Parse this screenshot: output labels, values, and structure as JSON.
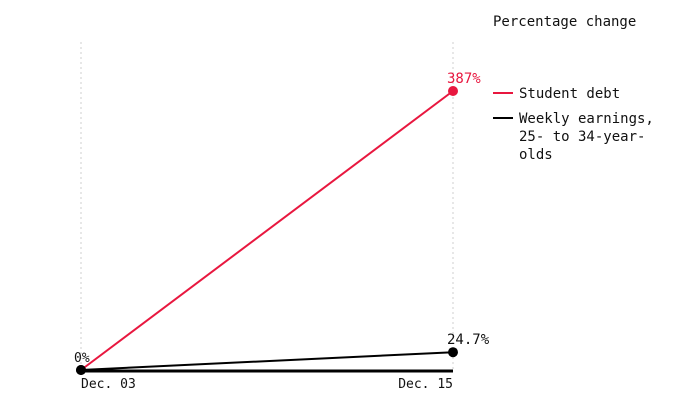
{
  "chart_data": {
    "type": "line",
    "title": "Percentage change",
    "x": [
      "Dec. 03",
      "Dec. 15"
    ],
    "x_tick_labels": [
      "Dec. 03",
      "Dec. 15"
    ],
    "ylim": [
      0,
      387
    ],
    "grid": "vertical dotted lines at each x tick",
    "legend_placement": "right",
    "series": [
      {
        "name": "Student debt",
        "color": "#e8173f",
        "values": [
          0,
          387
        ],
        "end_label": "387%"
      },
      {
        "name": "Weekly earnings, 25- to 34-year-olds",
        "name_lines": [
          "Weekly earnings,",
          "25- to 34-year-",
          "olds"
        ],
        "color": "#000000",
        "values": [
          0,
          24.7
        ],
        "end_label": "24.7%"
      }
    ],
    "start_label": "0%"
  }
}
